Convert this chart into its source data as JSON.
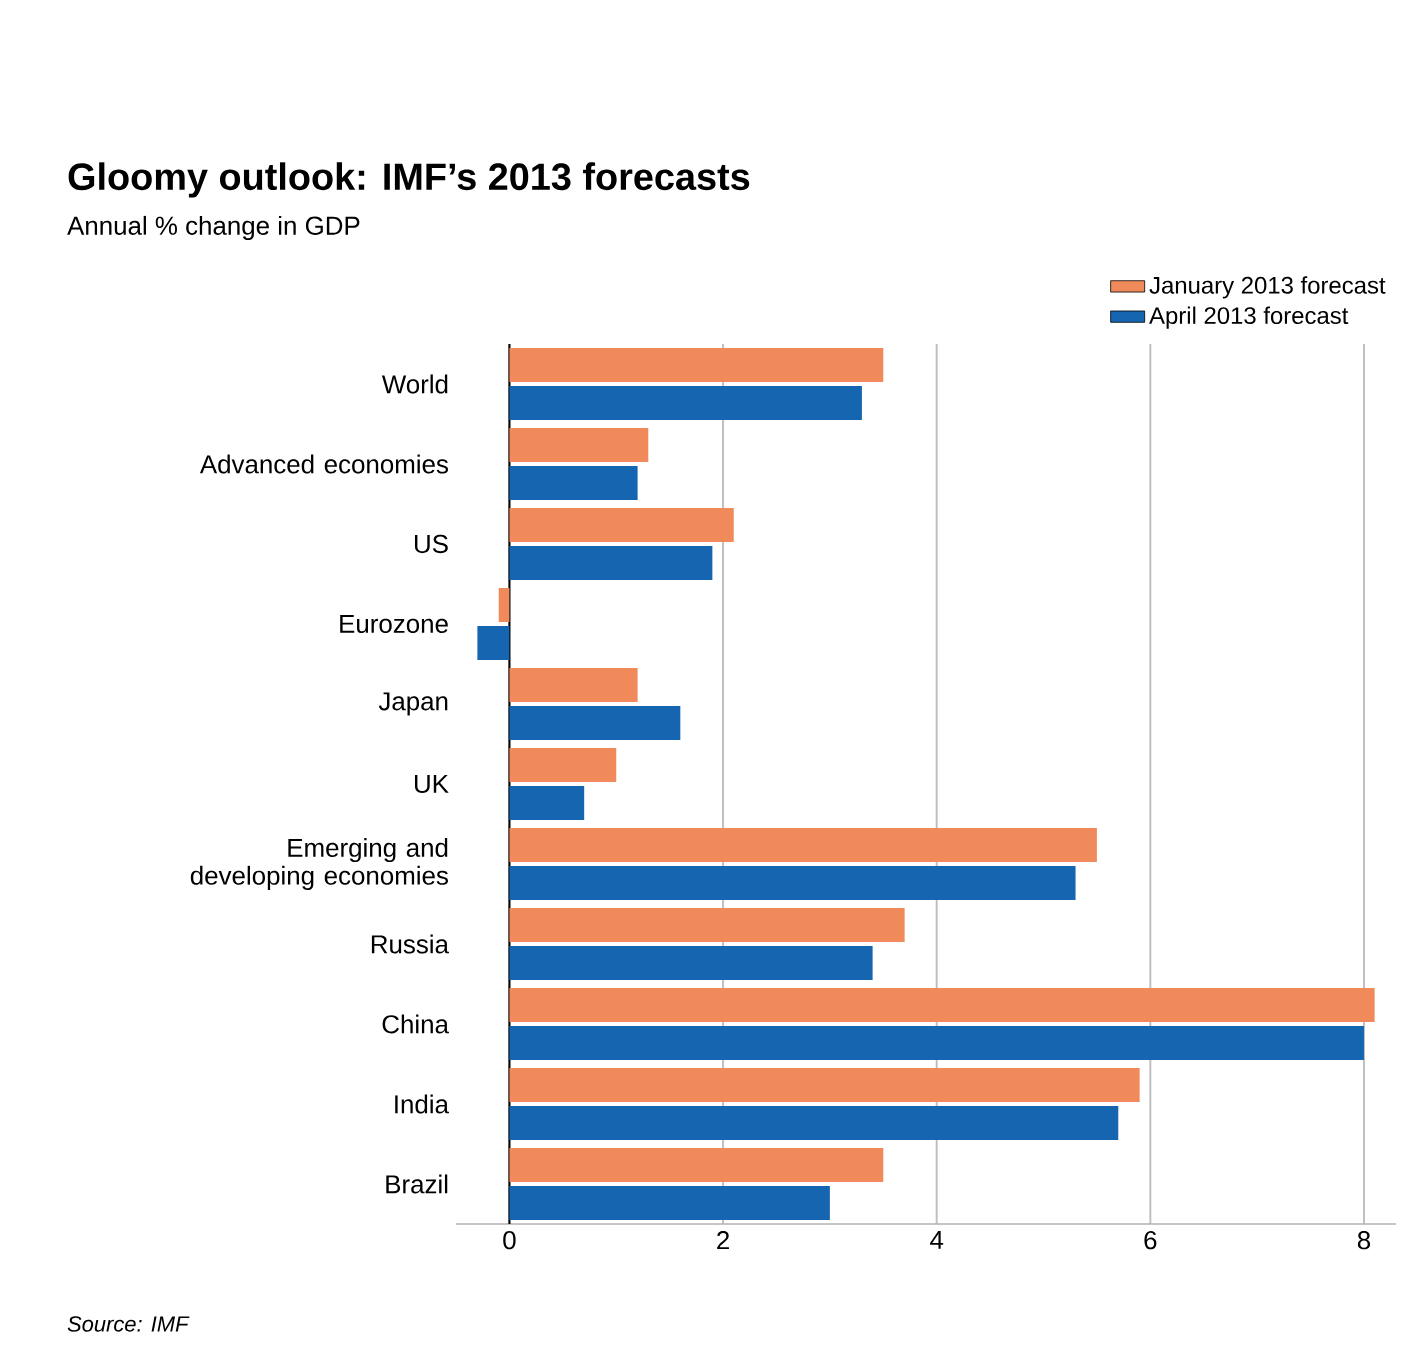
{
  "chart_data": {
    "type": "bar",
    "orientation": "horizontal",
    "title": "Gloomy outlook: IMF’s 2013 forecasts",
    "subtitle": "Annual % change in GDP",
    "categories": [
      "World",
      "Advanced economies",
      "US",
      "Eurozone",
      "Japan",
      "UK",
      "Emerging and developing economies",
      "Russia",
      "China",
      "India",
      "Brazil"
    ],
    "series": [
      {
        "name": "January 2013 forecast",
        "color": "#f08a5a",
        "values": [
          3.5,
          1.3,
          2.1,
          -0.1,
          1.2,
          1.0,
          5.5,
          3.7,
          8.1,
          5.9,
          3.5
        ]
      },
      {
        "name": "April 2013 forecast",
        "color": "#1565b0",
        "values": [
          3.3,
          1.2,
          1.9,
          -0.3,
          1.6,
          0.7,
          5.3,
          3.4,
          8.0,
          5.7,
          3.0
        ]
      }
    ],
    "xlim": [
      -0.5,
      8.3
    ],
    "xticks": [
      0,
      2,
      4,
      6,
      8
    ],
    "grid": "x",
    "legend": "top right",
    "annotations": [
      "Source: IMF"
    ]
  }
}
